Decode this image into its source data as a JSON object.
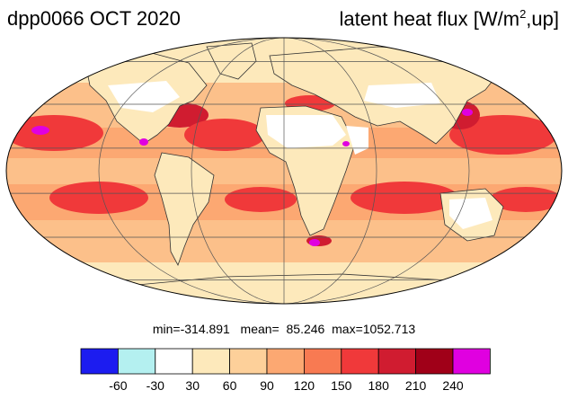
{
  "header": {
    "title_left": "dpp0066 OCT 2020",
    "title_right_prefix": "latent heat flux [W/m",
    "title_right_sup": "2",
    "title_right_suffix": ",up]"
  },
  "stats": {
    "min_label": "min=",
    "min": "-314.891",
    "mean_label": "mean=",
    "mean": "85.246",
    "max_label": "max=",
    "max": "1052.713"
  },
  "colorbar": {
    "colors": [
      "#1c1cf0",
      "#b4f0f0",
      "#ffffff",
      "#fde9bb",
      "#fdd09a",
      "#fca872",
      "#f87a52",
      "#f0393a",
      "#d01c30",
      "#a00018",
      "#e000e0"
    ],
    "tick_labels": [
      "-60",
      "-30",
      "30",
      "60",
      "90",
      "120",
      "150",
      "180",
      "210",
      "240"
    ]
  },
  "map": {
    "projection": "Mollweide",
    "field": "latent heat flux",
    "colors": {
      "ocean_base": "#fcc08a",
      "land_base": "#fde9bb",
      "desert": "#ffffff",
      "high": "#f0393a",
      "very_high": "#d01c30",
      "extreme": "#e000e0",
      "coast": "#333333",
      "grid": "#555555"
    }
  }
}
